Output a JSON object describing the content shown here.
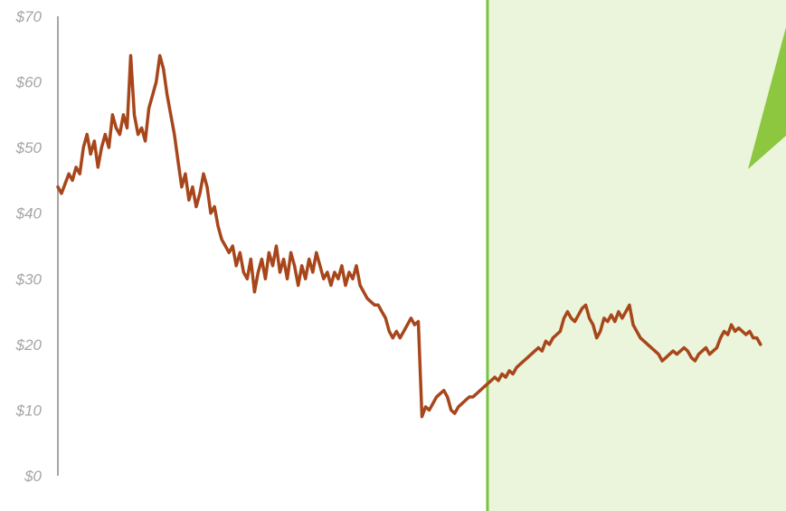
{
  "chart_data": {
    "type": "line",
    "title": "",
    "xlabel": "",
    "ylabel": "",
    "ylim": [
      0,
      70
    ],
    "yticks": [
      {
        "value": 0,
        "label": "$0"
      },
      {
        "value": 10,
        "label": "$10"
      },
      {
        "value": 20,
        "label": "$20"
      },
      {
        "value": 30,
        "label": "$30"
      },
      {
        "value": 40,
        "label": "$40"
      },
      {
        "value": 50,
        "label": "$50"
      },
      {
        "value": 60,
        "label": "$60"
      },
      {
        "value": 70,
        "label": "$70"
      }
    ],
    "grid": false,
    "legend": "none",
    "series_color": "#a8461b",
    "axis_color": "#a6a6a6",
    "highlight_color": "#eaf5dc",
    "highlight_border_color": "#7cc242",
    "arrow_color": "#8dc63f",
    "x_span": [
      0,
      100
    ],
    "highlight_start_x": 59,
    "series": [
      {
        "values": [
          [
            0,
            44
          ],
          [
            0.5,
            43
          ],
          [
            1,
            44.5
          ],
          [
            1.5,
            46
          ],
          [
            2,
            45
          ],
          [
            2.5,
            47
          ],
          [
            3,
            46
          ],
          [
            3.5,
            50
          ],
          [
            4,
            52
          ],
          [
            4.5,
            49
          ],
          [
            5,
            51
          ],
          [
            5.5,
            47
          ],
          [
            6,
            50
          ],
          [
            6.5,
            52
          ],
          [
            7,
            50
          ],
          [
            7.5,
            55
          ],
          [
            8,
            53
          ],
          [
            8.5,
            52
          ],
          [
            9,
            55
          ],
          [
            9.5,
            53
          ],
          [
            10,
            64
          ],
          [
            10.5,
            55
          ],
          [
            11,
            52
          ],
          [
            11.5,
            53
          ],
          [
            12,
            51
          ],
          [
            12.5,
            56
          ],
          [
            13,
            58
          ],
          [
            13.5,
            60
          ],
          [
            14,
            64
          ],
          [
            14.5,
            62
          ],
          [
            15,
            58
          ],
          [
            15.5,
            55
          ],
          [
            16,
            52
          ],
          [
            16.5,
            48
          ],
          [
            17,
            44
          ],
          [
            17.5,
            46
          ],
          [
            18,
            42
          ],
          [
            18.5,
            44
          ],
          [
            19,
            41
          ],
          [
            19.5,
            43
          ],
          [
            20,
            46
          ],
          [
            20.5,
            44
          ],
          [
            21,
            40
          ],
          [
            21.5,
            41
          ],
          [
            22,
            38
          ],
          [
            22.5,
            36
          ],
          [
            23,
            35
          ],
          [
            23.5,
            34
          ],
          [
            24,
            35
          ],
          [
            24.5,
            32
          ],
          [
            25,
            34
          ],
          [
            25.5,
            31
          ],
          [
            26,
            30
          ],
          [
            26.5,
            33
          ],
          [
            27,
            28
          ],
          [
            27.5,
            31
          ],
          [
            28,
            33
          ],
          [
            28.5,
            30
          ],
          [
            29,
            34
          ],
          [
            29.5,
            32
          ],
          [
            30,
            35
          ],
          [
            30.5,
            31
          ],
          [
            31,
            33
          ],
          [
            31.5,
            30
          ],
          [
            32,
            34
          ],
          [
            32.5,
            32
          ],
          [
            33,
            29
          ],
          [
            33.5,
            32
          ],
          [
            34,
            30
          ],
          [
            34.5,
            33
          ],
          [
            35,
            31
          ],
          [
            35.5,
            34
          ],
          [
            36,
            32
          ],
          [
            36.5,
            30
          ],
          [
            37,
            31
          ],
          [
            37.5,
            29
          ],
          [
            38,
            31
          ],
          [
            38.5,
            30
          ],
          [
            39,
            32
          ],
          [
            39.5,
            29
          ],
          [
            40,
            31
          ],
          [
            40.5,
            30
          ],
          [
            41,
            32
          ],
          [
            41.5,
            29
          ],
          [
            42,
            28
          ],
          [
            42.5,
            27
          ],
          [
            43,
            26.5
          ],
          [
            43.5,
            26
          ],
          [
            44,
            26
          ],
          [
            44.5,
            25
          ],
          [
            45,
            24
          ],
          [
            45.5,
            22
          ],
          [
            46,
            21
          ],
          [
            46.5,
            22
          ],
          [
            47,
            21
          ],
          [
            47.5,
            22
          ],
          [
            48,
            23
          ],
          [
            48.5,
            24
          ],
          [
            49,
            23
          ],
          [
            49.5,
            23.5
          ],
          [
            50,
            9
          ],
          [
            50.5,
            10.5
          ],
          [
            51,
            10
          ],
          [
            51.5,
            11
          ],
          [
            52,
            12
          ],
          [
            52.5,
            12.5
          ],
          [
            53,
            13
          ],
          [
            53.5,
            12
          ],
          [
            54,
            10
          ],
          [
            54.5,
            9.5
          ],
          [
            55,
            10.5
          ],
          [
            55.5,
            11
          ],
          [
            56,
            11.5
          ],
          [
            56.5,
            12
          ],
          [
            57,
            12
          ],
          [
            57.5,
            12.5
          ],
          [
            58,
            13
          ],
          [
            58.5,
            13.5
          ],
          [
            59,
            14
          ],
          [
            59.5,
            14.5
          ],
          [
            60,
            15
          ],
          [
            60.5,
            14.5
          ],
          [
            61,
            15.5
          ],
          [
            61.5,
            15
          ],
          [
            62,
            16
          ],
          [
            62.5,
            15.5
          ],
          [
            63,
            16.5
          ],
          [
            63.5,
            17
          ],
          [
            64,
            17.5
          ],
          [
            64.5,
            18
          ],
          [
            65,
            18.5
          ],
          [
            65.5,
            19
          ],
          [
            66,
            19.5
          ],
          [
            66.5,
            19
          ],
          [
            67,
            20.5
          ],
          [
            67.5,
            20
          ],
          [
            68,
            21
          ],
          [
            68.5,
            21.5
          ],
          [
            69,
            22
          ],
          [
            69.5,
            24
          ],
          [
            70,
            25
          ],
          [
            70.5,
            24
          ],
          [
            71,
            23.5
          ],
          [
            71.5,
            24.5
          ],
          [
            72,
            25.5
          ],
          [
            72.5,
            26
          ],
          [
            73,
            24
          ],
          [
            73.5,
            23
          ],
          [
            74,
            21
          ],
          [
            74.5,
            22
          ],
          [
            75,
            24
          ],
          [
            75.5,
            23.5
          ],
          [
            76,
            24.5
          ],
          [
            76.5,
            23.5
          ],
          [
            77,
            25
          ],
          [
            77.5,
            24
          ],
          [
            78,
            25
          ],
          [
            78.5,
            26
          ],
          [
            79,
            23
          ],
          [
            79.5,
            22
          ],
          [
            80,
            21
          ],
          [
            80.5,
            20.5
          ],
          [
            81,
            20
          ],
          [
            81.5,
            19.5
          ],
          [
            82,
            19
          ],
          [
            82.5,
            18.5
          ],
          [
            83,
            17.5
          ],
          [
            83.5,
            18
          ],
          [
            84,
            18.5
          ],
          [
            84.5,
            19
          ],
          [
            85,
            18.5
          ],
          [
            85.5,
            19
          ],
          [
            86,
            19.5
          ],
          [
            86.5,
            19
          ],
          [
            87,
            18
          ],
          [
            87.5,
            17.5
          ],
          [
            88,
            18.5
          ],
          [
            88.5,
            19
          ],
          [
            89,
            19.5
          ],
          [
            89.5,
            18.5
          ],
          [
            90,
            19
          ],
          [
            90.5,
            19.5
          ],
          [
            91,
            21
          ],
          [
            91.5,
            22
          ],
          [
            92,
            21.5
          ],
          [
            92.5,
            23
          ],
          [
            93,
            22
          ],
          [
            93.5,
            22.5
          ],
          [
            94,
            22
          ],
          [
            94.5,
            21.5
          ],
          [
            95,
            22
          ],
          [
            95.5,
            21
          ],
          [
            96,
            21
          ],
          [
            96.5,
            20
          ]
        ]
      }
    ]
  }
}
